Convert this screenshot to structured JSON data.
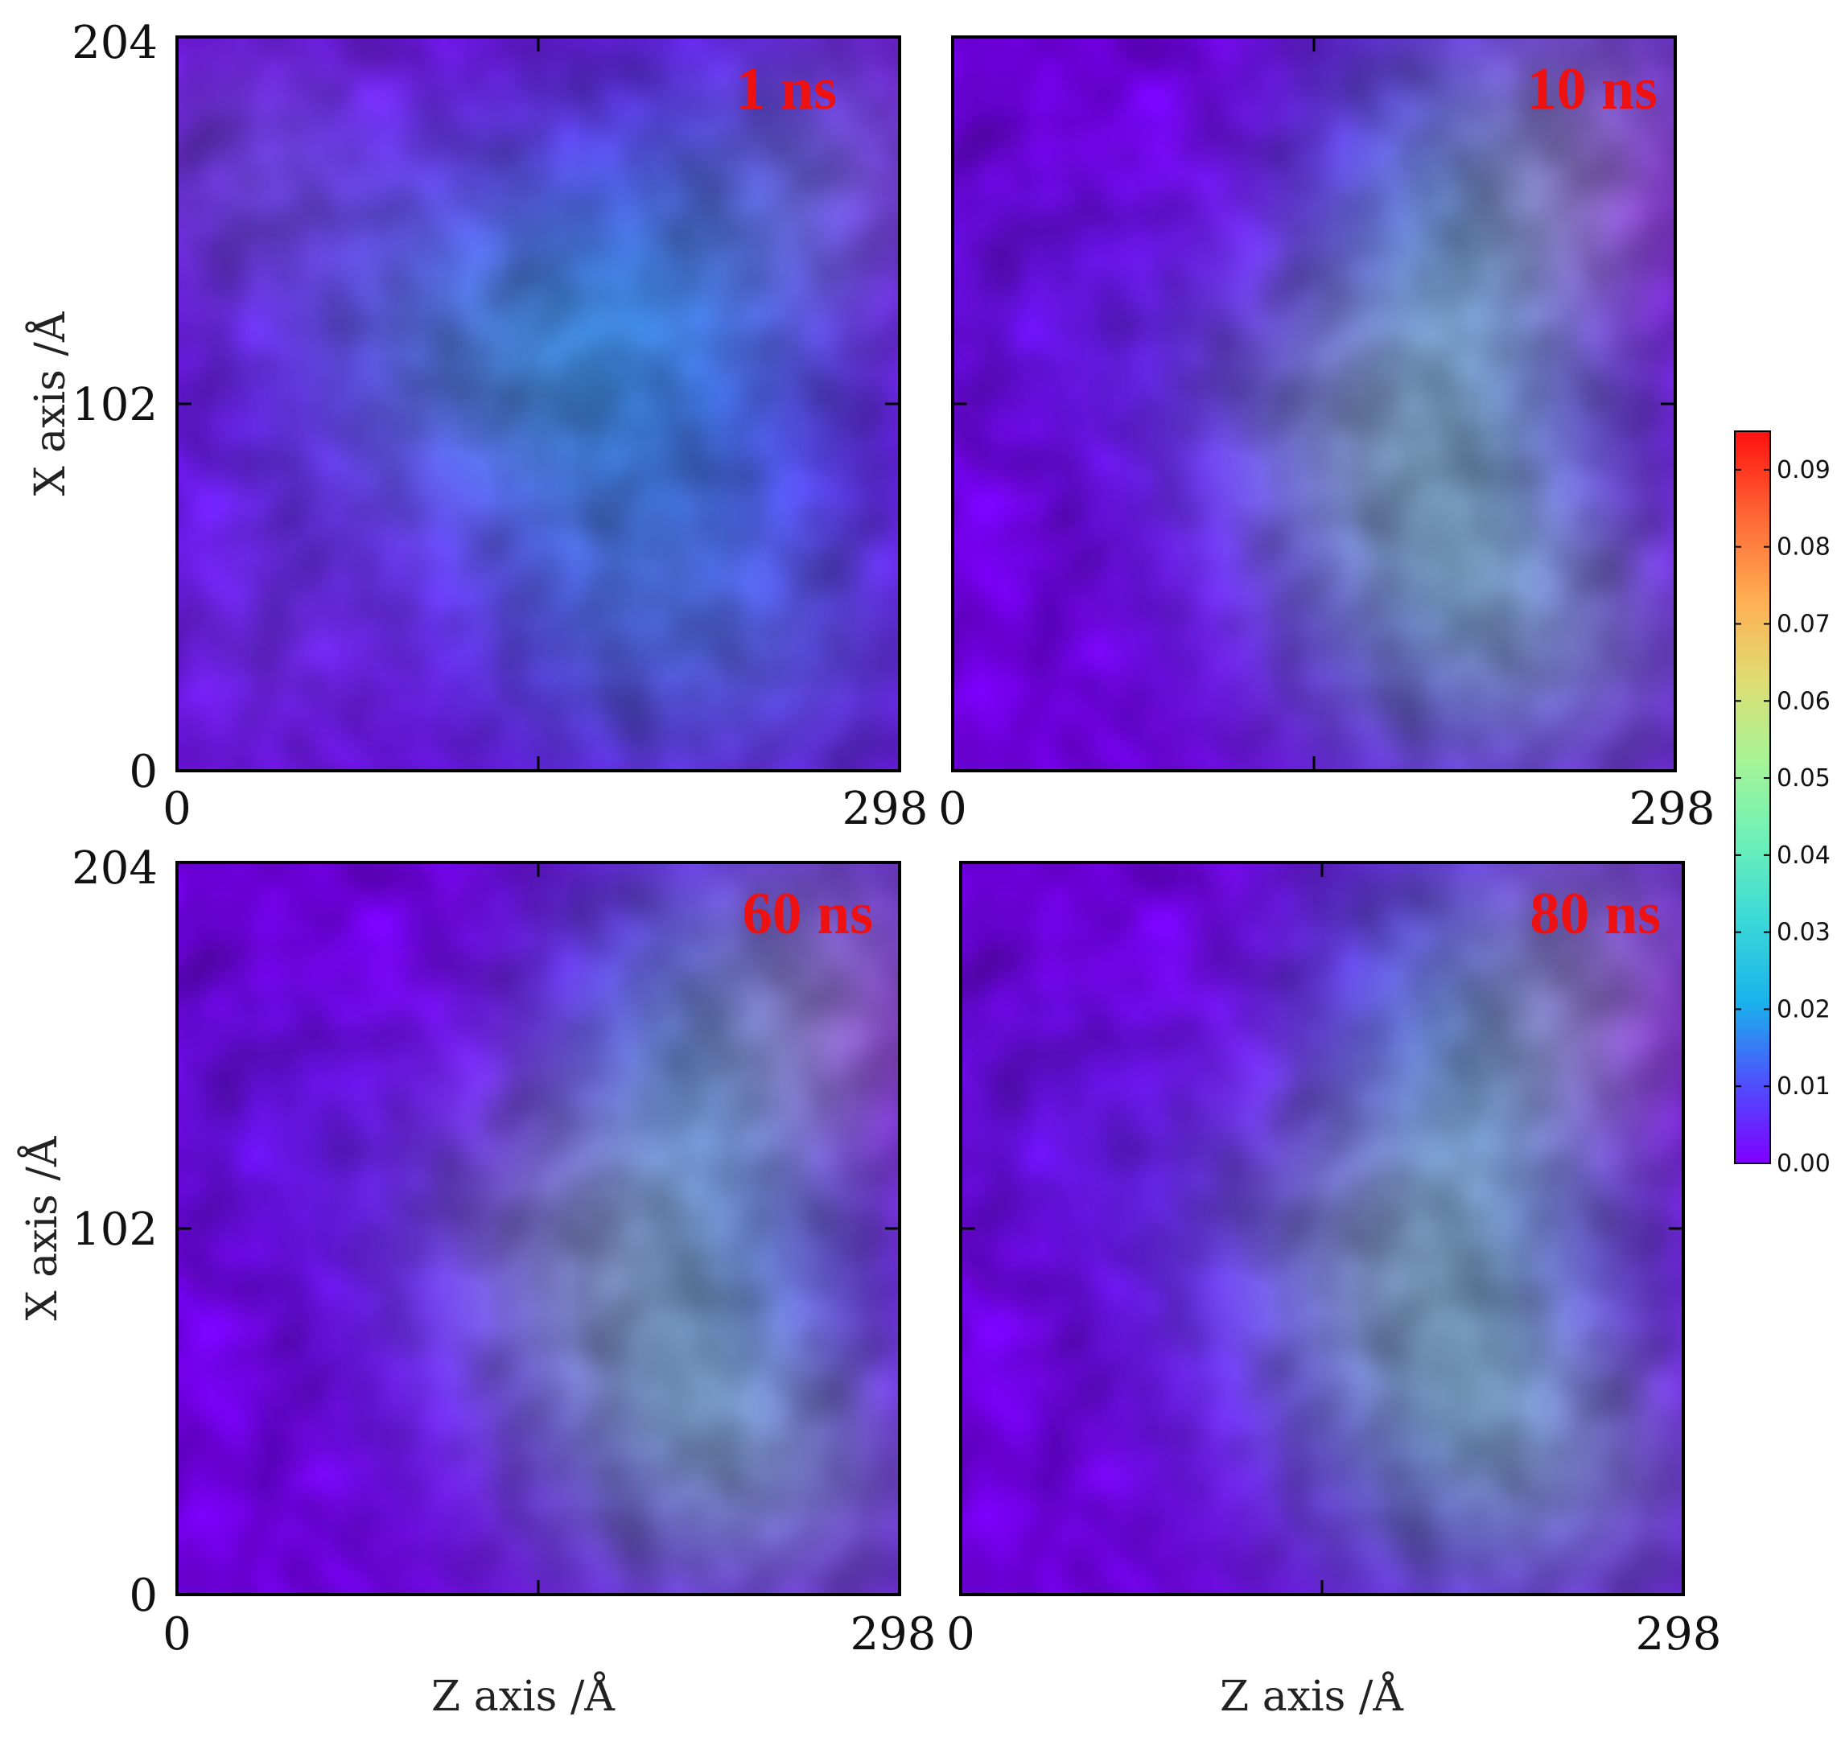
{
  "chart_data": {
    "type": "heatmap",
    "xlabel": "Z axis /Å",
    "ylabel": "X axis /Å",
    "x_range": [
      0,
      298
    ],
    "y_range": [
      0,
      204
    ],
    "x_tick_labels": [
      "0",
      "298"
    ],
    "y_tick_labels": [
      "0",
      "102",
      "204"
    ],
    "colorscale": {
      "min": 0.0,
      "max": 0.095,
      "tick_labels": [
        "0.00",
        "0.01",
        "0.02",
        "0.03",
        "0.04",
        "0.05",
        "0.06",
        "0.07",
        "0.08",
        "0.09"
      ],
      "colormap": "rainbow",
      "colors": [
        "#7f00ff",
        "#4060fb",
        "#1ab2ec",
        "#48e6d0",
        "#7ef2b0",
        "#b4f390",
        "#e8d46c",
        "#ffa84e",
        "#ff6a36",
        "#ff1a12"
      ]
    },
    "panels": [
      {
        "label": "1 ns"
      },
      {
        "label": "10 ns"
      },
      {
        "label": "60 ns"
      },
      {
        "label": "80 ns"
      }
    ]
  }
}
